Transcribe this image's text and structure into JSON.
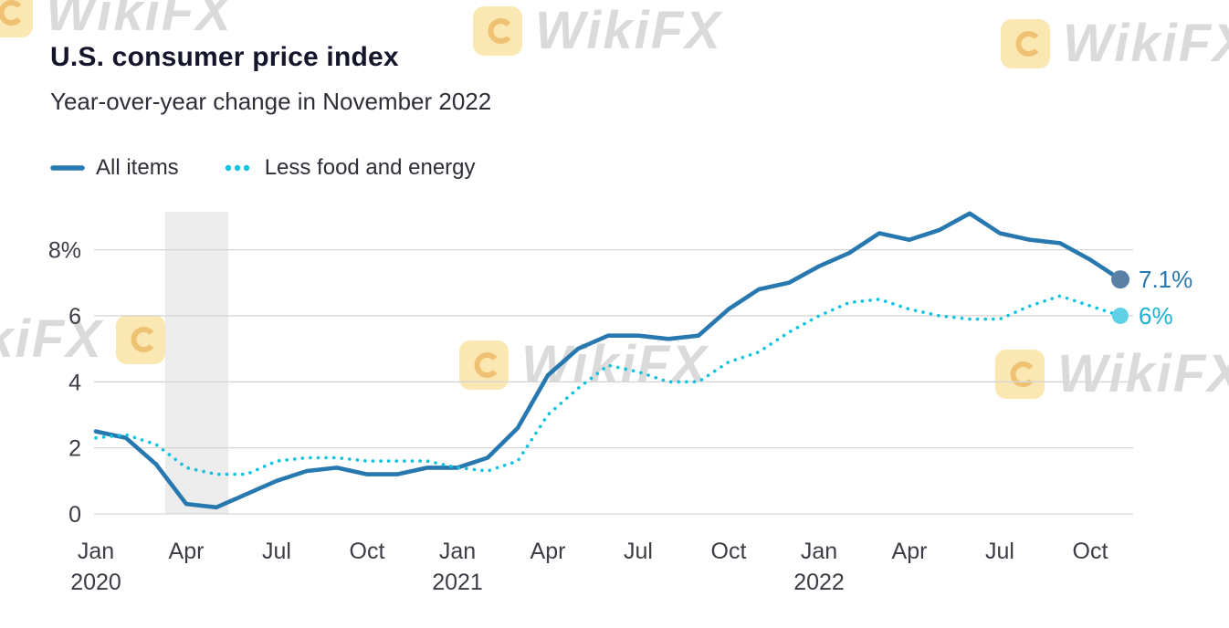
{
  "header": {
    "title": "U.S. consumer price index",
    "subtitle": "Year-over-year change in November 2022"
  },
  "legend": [
    {
      "label": "All items",
      "color": "#2878b0",
      "style": "solid"
    },
    {
      "label": "Less food and energy",
      "color": "#0fc2e0",
      "style": "dotted"
    }
  ],
  "watermark": {
    "text": "WikiFX"
  },
  "colors": {
    "all_items_line": "#2878b0",
    "core_line": "#0fc2e0",
    "gridline": "#d6d6d6",
    "recession_band": "#ececec",
    "axis_text": "#3c3c44",
    "watermark_yellow": "#f6c542"
  },
  "chart_data": {
    "type": "line",
    "title": "U.S. consumer price index",
    "subtitle": "Year-over-year change in November 2022",
    "unit": "percent year-over-year",
    "x": [
      "Jan 2020",
      "Feb 2020",
      "Mar 2020",
      "Apr 2020",
      "May 2020",
      "Jun 2020",
      "Jul 2020",
      "Aug 2020",
      "Sep 2020",
      "Oct 2020",
      "Nov 2020",
      "Dec 2020",
      "Jan 2021",
      "Feb 2021",
      "Mar 2021",
      "Apr 2021",
      "May 2021",
      "Jun 2021",
      "Jul 2021",
      "Aug 2021",
      "Sep 2021",
      "Oct 2021",
      "Nov 2021",
      "Dec 2021",
      "Jan 2022",
      "Feb 2022",
      "Mar 2022",
      "Apr 2022",
      "May 2022",
      "Jun 2022",
      "Jul 2022",
      "Aug 2022",
      "Sep 2022",
      "Oct 2022",
      "Nov 2022"
    ],
    "series": [
      {
        "name": "All items",
        "style": "solid",
        "color": "#2878b0",
        "dot_color": "#5b80a5",
        "label_color": "#2878b0",
        "end_label": "7.1%",
        "values": [
          2.5,
          2.3,
          1.5,
          0.3,
          0.2,
          0.6,
          1.0,
          1.3,
          1.4,
          1.2,
          1.2,
          1.4,
          1.4,
          1.7,
          2.6,
          4.2,
          5.0,
          5.4,
          5.4,
          5.3,
          5.4,
          6.2,
          6.8,
          7.0,
          7.5,
          7.9,
          8.5,
          8.3,
          8.6,
          9.1,
          8.5,
          8.3,
          8.2,
          7.7,
          7.1
        ]
      },
      {
        "name": "Less food and energy",
        "style": "dotted",
        "color": "#0fc2e0",
        "dot_color": "#5fd0e6",
        "label_color": "#17b3d6",
        "end_label": "6%",
        "values": [
          2.3,
          2.4,
          2.1,
          1.4,
          1.2,
          1.2,
          1.6,
          1.7,
          1.7,
          1.6,
          1.6,
          1.6,
          1.4,
          1.3,
          1.6,
          3.0,
          3.8,
          4.5,
          4.3,
          4.0,
          4.0,
          4.6,
          4.9,
          5.5,
          6.0,
          6.4,
          6.5,
          6.2,
          6.0,
          5.9,
          5.9,
          6.3,
          6.6,
          6.3,
          6.0
        ]
      }
    ],
    "ylim": [
      0,
      9.15
    ],
    "y_ticks": [
      {
        "value": 8,
        "label": "8%"
      },
      {
        "value": 6,
        "label": "6"
      },
      {
        "value": 4,
        "label": "4"
      },
      {
        "value": 2,
        "label": "2"
      },
      {
        "value": 0,
        "label": "0"
      }
    ],
    "x_ticks": [
      {
        "index": 0,
        "label": "Jan",
        "year": "2020"
      },
      {
        "index": 3,
        "label": "Apr"
      },
      {
        "index": 6,
        "label": "Jul"
      },
      {
        "index": 9,
        "label": "Oct"
      },
      {
        "index": 12,
        "label": "Jan",
        "year": "2021"
      },
      {
        "index": 15,
        "label": "Apr"
      },
      {
        "index": 18,
        "label": "Jul"
      },
      {
        "index": 21,
        "label": "Oct"
      },
      {
        "index": 24,
        "label": "Jan",
        "year": "2022"
      },
      {
        "index": 27,
        "label": "Apr"
      },
      {
        "index": 30,
        "label": "Jul"
      },
      {
        "index": 33,
        "label": "Oct"
      }
    ],
    "grid": true,
    "legend_position": "top-left",
    "recession_band": {
      "from_index": 2.3,
      "to_index": 4.4,
      "color": "#ececec"
    }
  }
}
